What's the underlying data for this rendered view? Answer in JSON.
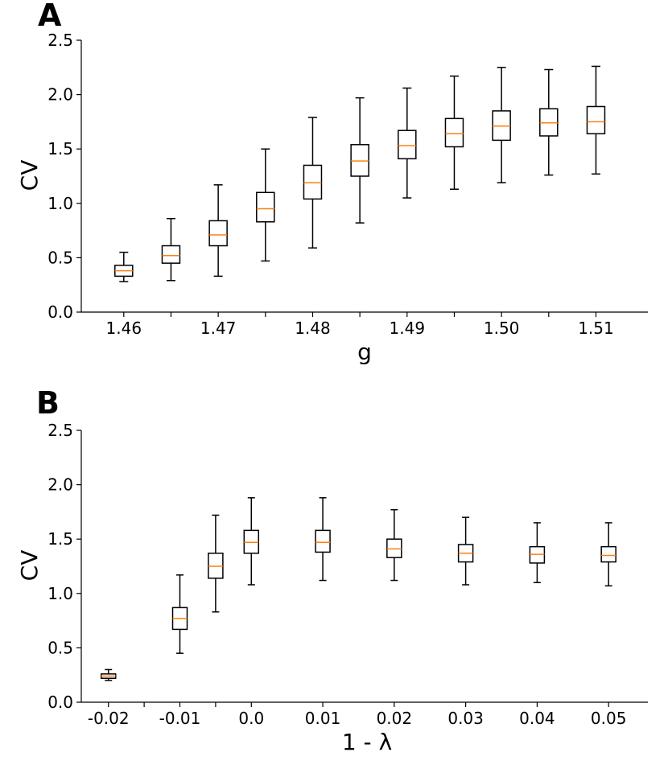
{
  "chart_data": [
    {
      "panel": "A",
      "type": "box",
      "xlabel": "g",
      "ylabel": "CV",
      "ylim": [
        0,
        2.5
      ],
      "yticks": [
        "0.0",
        "0.5",
        "1.0",
        "1.5",
        "2.0",
        "2.5"
      ],
      "xticks": [
        "1.46",
        "1.47",
        "1.48",
        "1.49",
        "1.50",
        "1.51"
      ],
      "xlim": [
        1.4555,
        1.5155
      ],
      "median_color": "#ff7f0e",
      "boxes": [
        {
          "x": 1.46,
          "whislo": 0.28,
          "q1": 0.33,
          "med": 0.38,
          "q3": 0.43,
          "whishi": 0.55
        },
        {
          "x": 1.465,
          "whislo": 0.29,
          "q1": 0.45,
          "med": 0.52,
          "q3": 0.61,
          "whishi": 0.86
        },
        {
          "x": 1.47,
          "whislo": 0.33,
          "q1": 0.61,
          "med": 0.71,
          "q3": 0.84,
          "whishi": 1.17
        },
        {
          "x": 1.475,
          "whislo": 0.47,
          "q1": 0.83,
          "med": 0.95,
          "q3": 1.1,
          "whishi": 1.5
        },
        {
          "x": 1.48,
          "whislo": 0.59,
          "q1": 1.04,
          "med": 1.19,
          "q3": 1.35,
          "whishi": 1.79
        },
        {
          "x": 1.485,
          "whislo": 0.82,
          "q1": 1.25,
          "med": 1.39,
          "q3": 1.54,
          "whishi": 1.97
        },
        {
          "x": 1.49,
          "whislo": 1.05,
          "q1": 1.41,
          "med": 1.53,
          "q3": 1.67,
          "whishi": 2.06
        },
        {
          "x": 1.495,
          "whislo": 1.13,
          "q1": 1.52,
          "med": 1.64,
          "q3": 1.78,
          "whishi": 2.17
        },
        {
          "x": 1.5,
          "whislo": 1.19,
          "q1": 1.58,
          "med": 1.71,
          "q3": 1.85,
          "whishi": 2.25
        },
        {
          "x": 1.505,
          "whislo": 1.26,
          "q1": 1.62,
          "med": 1.74,
          "q3": 1.87,
          "whishi": 2.23
        },
        {
          "x": 1.51,
          "whislo": 1.27,
          "q1": 1.64,
          "med": 1.75,
          "q3": 1.89,
          "whishi": 2.26
        }
      ]
    },
    {
      "panel": "B",
      "type": "box",
      "xlabel": "1 - λ",
      "ylabel": "CV",
      "ylim": [
        0,
        2.5
      ],
      "yticks": [
        "0.0",
        "0.5",
        "1.0",
        "1.5",
        "2.0",
        "2.5"
      ],
      "xticks": [
        "-0.02",
        "-0.01",
        "0.0",
        "0.01",
        "0.02",
        "0.03",
        "0.04",
        "0.05"
      ],
      "xlim": [
        -0.0238,
        0.0555
      ],
      "median_color": "#ff7f0e",
      "boxes": [
        {
          "x": -0.02,
          "whislo": 0.2,
          "q1": 0.22,
          "med": 0.24,
          "q3": 0.26,
          "whishi": 0.3
        },
        {
          "x": -0.01,
          "whislo": 0.45,
          "q1": 0.67,
          "med": 0.77,
          "q3": 0.87,
          "whishi": 1.17
        },
        {
          "x": -0.005,
          "whislo": 0.83,
          "q1": 1.14,
          "med": 1.25,
          "q3": 1.37,
          "whishi": 1.72
        },
        {
          "x": 0.0,
          "whislo": 1.08,
          "q1": 1.37,
          "med": 1.47,
          "q3": 1.58,
          "whishi": 1.88
        },
        {
          "x": 0.01,
          "whislo": 1.12,
          "q1": 1.38,
          "med": 1.47,
          "q3": 1.58,
          "whishi": 1.88
        },
        {
          "x": 0.02,
          "whislo": 1.12,
          "q1": 1.33,
          "med": 1.41,
          "q3": 1.5,
          "whishi": 1.77
        },
        {
          "x": 0.03,
          "whislo": 1.08,
          "q1": 1.29,
          "med": 1.37,
          "q3": 1.45,
          "whishi": 1.7
        },
        {
          "x": 0.04,
          "whislo": 1.1,
          "q1": 1.28,
          "med": 1.36,
          "q3": 1.43,
          "whishi": 1.65
        },
        {
          "x": 0.05,
          "whislo": 1.07,
          "q1": 1.29,
          "med": 1.35,
          "q3": 1.43,
          "whishi": 1.65
        }
      ]
    }
  ]
}
